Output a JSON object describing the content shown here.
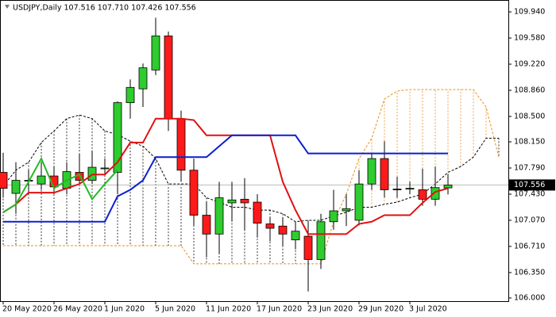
{
  "chart_data": {
    "type": "candlestick",
    "title": "USDJPY,Daily 107.516 107.710 107.426 107.556",
    "categories": [
      "20 May 2020",
      null,
      null,
      null,
      "26 May 2020",
      null,
      null,
      null,
      "1 Jun 2020",
      null,
      null,
      null,
      "5 Jun 2020",
      null,
      null,
      null,
      "11 Jun 2020",
      null,
      null,
      null,
      "17 Jun 2020",
      null,
      null,
      null,
      "23 Jun 2020",
      null,
      null,
      null,
      "29 Jun 2020",
      null,
      null,
      null,
      "3 Jul 2020",
      null,
      null,
      null,
      null,
      null,
      null,
      null
    ],
    "candles": {
      "open": [
        107.73,
        107.44,
        107.62,
        107.57,
        107.68,
        107.51,
        107.73,
        107.62,
        107.79,
        107.73,
        108.69,
        108.88,
        109.14,
        109.61,
        108.47,
        107.76,
        107.14,
        106.88,
        107.31,
        107.36,
        107.32,
        107.02,
        106.99,
        106.8,
        106.85,
        106.53,
        107.05,
        107.2,
        107.07,
        107.57,
        107.92,
        107.5,
        107.51,
        107.49,
        107.36,
        107.516,
        null,
        null,
        null,
        null
      ],
      "high": [
        108.0,
        107.87,
        107.76,
        107.87,
        107.81,
        107.87,
        107.98,
        108.03,
        107.92,
        108.71,
        109.01,
        109.23,
        109.86,
        109.67,
        108.58,
        107.92,
        107.32,
        107.6,
        107.6,
        107.65,
        107.43,
        107.11,
        107.11,
        107.05,
        107.05,
        107.16,
        107.49,
        107.43,
        107.76,
        107.98,
        108.16,
        107.67,
        107.6,
        107.78,
        107.81,
        107.71,
        null,
        null,
        null,
        null
      ],
      "low": [
        107.38,
        107.16,
        107.43,
        107.49,
        107.43,
        107.43,
        107.57,
        107.57,
        107.7,
        107.43,
        108.47,
        108.63,
        109.07,
        108.3,
        107.6,
        107.0,
        106.56,
        106.61,
        107.05,
        106.94,
        106.83,
        106.78,
        106.72,
        106.67,
        106.09,
        106.4,
        106.94,
        106.99,
        107.0,
        107.49,
        107.38,
        107.38,
        107.43,
        107.27,
        107.27,
        107.426,
        null,
        null,
        null,
        null
      ],
      "close": [
        107.51,
        107.62,
        107.62,
        107.68,
        107.53,
        107.74,
        107.62,
        107.8,
        107.79,
        108.69,
        108.9,
        109.17,
        109.61,
        108.47,
        107.76,
        107.14,
        106.88,
        107.38,
        107.35,
        107.31,
        107.03,
        106.96,
        106.88,
        106.92,
        106.53,
        107.05,
        107.2,
        107.23,
        107.57,
        107.92,
        107.49,
        107.49,
        107.51,
        107.36,
        107.52,
        107.556,
        null,
        null,
        null,
        null
      ],
      "up_color": "#2ecc2e",
      "down_color": "#ff1a1a"
    },
    "overlays": [
      {
        "color": "#e01010",
        "dash": false,
        "values": [
          107.18,
          107.29,
          107.45,
          107.45,
          107.45,
          107.51,
          107.57,
          107.7,
          107.7,
          107.87,
          108.14,
          108.14,
          108.47,
          108.47,
          108.47,
          108.45,
          108.24,
          108.24,
          108.24,
          108.24,
          108.24,
          108.24,
          107.6,
          107.21,
          106.88,
          106.88,
          106.88,
          106.88,
          107.02,
          107.05,
          107.14,
          107.14,
          107.14,
          107.31,
          107.46,
          107.51,
          null,
          null,
          null,
          null
        ]
      },
      {
        "color": "#0a1fd0",
        "dash": false,
        "values": [
          107.05,
          107.05,
          107.05,
          107.05,
          107.05,
          107.05,
          107.05,
          107.05,
          107.05,
          107.4,
          107.49,
          107.62,
          107.94,
          107.94,
          107.94,
          107.94,
          107.94,
          108.09,
          108.24,
          108.24,
          108.24,
          108.24,
          108.24,
          108.24,
          107.99,
          107.99,
          107.99,
          107.99,
          107.99,
          107.99,
          107.99,
          107.99,
          107.99,
          107.99,
          107.99,
          107.99,
          null,
          null,
          null,
          null
        ]
      },
      {
        "color": "#22bb22",
        "dash": false,
        "values": [
          107.18,
          107.29,
          107.6,
          107.92,
          107.51,
          107.62,
          107.7,
          107.36,
          107.57,
          107.76,
          null,
          null,
          null,
          null,
          null,
          null,
          null,
          null,
          null,
          null,
          null,
          null,
          null,
          null,
          null,
          null,
          null,
          null,
          null,
          null,
          null,
          null,
          null,
          null,
          null,
          null,
          null,
          null,
          null,
          null
        ]
      }
    ],
    "cloud": {
      "span_a": {
        "color": "#000000",
        "values": [
          107.54,
          107.76,
          107.87,
          108.14,
          108.3,
          108.47,
          108.52,
          108.47,
          108.3,
          108.25,
          108.16,
          108.09,
          107.92,
          107.57,
          107.57,
          107.57,
          107.38,
          107.32,
          107.25,
          107.25,
          107.21,
          107.21,
          107.16,
          107.05,
          107.07,
          107.07,
          107.13,
          107.18,
          107.25,
          107.25,
          107.29,
          107.32,
          107.38,
          107.43,
          107.57,
          107.73,
          107.81,
          107.94,
          108.2,
          108.2
        ]
      },
      "span_b": {
        "color": "#e8901c",
        "values": [
          106.72,
          106.72,
          106.72,
          106.72,
          106.72,
          106.72,
          106.72,
          106.72,
          106.72,
          106.72,
          106.72,
          106.72,
          106.72,
          106.72,
          106.72,
          106.47,
          106.47,
          106.47,
          106.47,
          106.47,
          106.47,
          106.47,
          106.47,
          106.47,
          106.47,
          106.47,
          107.05,
          107.43,
          107.92,
          108.2,
          108.74,
          108.85,
          108.87,
          108.87,
          108.87,
          108.87,
          108.87,
          108.87,
          108.63,
          107.94
        ]
      }
    },
    "ylim": [
      105.956,
      110.104
    ],
    "yticks": [
      {
        "value": 109.94,
        "label": "109.940"
      },
      {
        "value": 109.58,
        "label": "109.580"
      },
      {
        "value": 109.22,
        "label": "109.220"
      },
      {
        "value": 108.86,
        "label": "108.860"
      },
      {
        "value": 108.5,
        "label": "108.500"
      },
      {
        "value": 108.15,
        "label": "108.150"
      },
      {
        "value": 107.79,
        "label": "107.790"
      },
      {
        "value": 107.43,
        "label": "107.430"
      },
      {
        "value": 107.07,
        "label": "107.070"
      },
      {
        "value": 106.71,
        "label": "106.710"
      },
      {
        "value": 106.35,
        "label": "106.350"
      },
      {
        "value": 106.0,
        "label": "106.000"
      }
    ]
  }
}
